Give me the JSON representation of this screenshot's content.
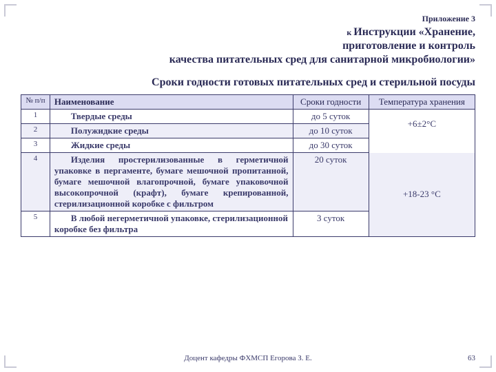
{
  "appendix": "Приложение 3",
  "subtitle_line1_prefix": "к ",
  "subtitle_line1": "Инструкции «Хранение,",
  "subtitle_line2": "приготовление и контроль",
  "subtitle_line3": "качества питательных сред для санитарной микробиологии»",
  "title": "Сроки годности готовых питательных сред и стерильной посуды",
  "headers": {
    "num": "№ п/п",
    "name": "Наименование",
    "shelf": "Сроки годности",
    "temp": "Температура хранения"
  },
  "rows": [
    {
      "num": "1",
      "name": "Твердые среды",
      "shelf": "до 5 суток"
    },
    {
      "num": "2",
      "name": "Полужидкие среды",
      "shelf": "до 10 суток"
    },
    {
      "num": "3",
      "name": "Жидкие среды",
      "shelf": "до 30 суток"
    },
    {
      "num": "4",
      "name": "Изделия простерилизованные в герметичной упаковке в пергаменте, бумаге мешочной пропитанной, бумаге мешочной влагопрочной, бумаге упаковочной высокопрочной (крафт), бумаге крепированной, стерилизационной коробке с фильтром",
      "shelf": "20 суток"
    },
    {
      "num": "5",
      "name": "В любой негерметичной упаковке, стерилизационной коробке без фильтра",
      "shelf": "3 суток"
    }
  ],
  "temps": {
    "group1": "+6±2°С",
    "group2": "+18-23 °С"
  },
  "footer": "Доцент кафедры ФХМСП Егорова З. Е.",
  "pagenum": "63",
  "colors": {
    "header_bg": "#dcdcf2",
    "row_odd_bg": "#eeeef8",
    "row_even_bg": "#ffffff",
    "text": "#3a3a6a",
    "border": "#3a3a6a"
  }
}
